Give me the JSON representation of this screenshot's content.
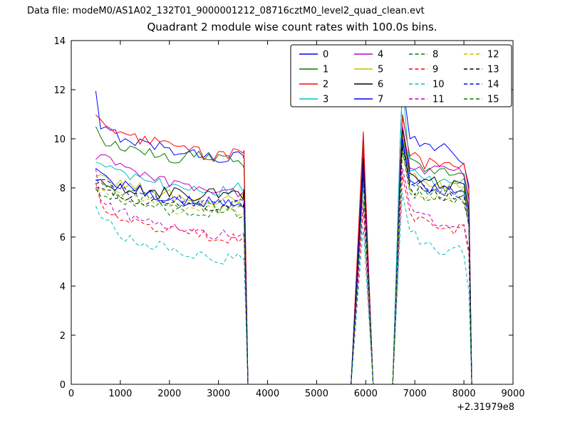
{
  "chart_data": {
    "type": "line",
    "datafile_label": "Data file: modeM0/AS1A02_132T01_9000001212_08716cztM0_level2_quad_clean.evt",
    "title": "Quadrant 2 module wise count rates with 100.0s bins.",
    "x_offset_label": "+2.31979e8",
    "xlim": [
      0,
      9000
    ],
    "ylim": [
      0,
      14
    ],
    "xticks": [
      0,
      1000,
      2000,
      3000,
      4000,
      5000,
      6000,
      7000,
      8000,
      9000
    ],
    "yticks": [
      0,
      2,
      4,
      6,
      8,
      10,
      12,
      14
    ],
    "grid": false,
    "legend_position": "upper-center-right",
    "legend_columns": 4,
    "anchor_x": [
      500,
      600,
      1000,
      1500,
      2000,
      2500,
      3000,
      3400,
      3520,
      3600,
      5650,
      5700,
      5950,
      6150,
      6550,
      6700,
      6750,
      6900,
      7200,
      7600,
      8000,
      8100,
      8160
    ],
    "series": [
      {
        "name": "0",
        "color": "#0000ff",
        "dashed": false,
        "anchors": [
          11.8,
          10.4,
          10.1,
          9.8,
          9.6,
          9.4,
          9.2,
          9.3,
          9.2,
          0,
          0,
          0,
          10.0,
          0,
          0,
          9.8,
          12.3,
          10.0,
          9.6,
          9.8,
          9.2,
          8.1,
          0
        ]
      },
      {
        "name": "1",
        "color": "#007f00",
        "dashed": false,
        "anchors": [
          10.3,
          10.0,
          9.6,
          9.4,
          9.2,
          9.3,
          9.2,
          9.1,
          9.0,
          0,
          0,
          0,
          9.8,
          0,
          0,
          8.8,
          11.0,
          9.2,
          8.9,
          8.7,
          8.6,
          7.6,
          0
        ]
      },
      {
        "name": "2",
        "color": "#ff0000",
        "dashed": false,
        "anchors": [
          11.0,
          10.7,
          10.2,
          9.9,
          9.7,
          9.5,
          9.3,
          9.4,
          9.4,
          0,
          0,
          0,
          10.3,
          0,
          0,
          8.7,
          10.9,
          9.3,
          9.0,
          8.9,
          9.0,
          7.9,
          0
        ]
      },
      {
        "name": "3",
        "color": "#00bfbf",
        "dashed": false,
        "anchors": [
          9.1,
          8.9,
          8.5,
          8.3,
          8.1,
          7.9,
          7.8,
          8.0,
          7.9,
          0,
          0,
          0,
          8.6,
          0,
          0,
          9.8,
          12.2,
          8.7,
          8.4,
          8.3,
          8.2,
          7.2,
          0
        ]
      },
      {
        "name": "4",
        "color": "#bf00bf",
        "dashed": false,
        "anchors": [
          9.4,
          9.2,
          8.8,
          8.5,
          8.2,
          8.0,
          7.9,
          7.8,
          7.8,
          0,
          0,
          0,
          9.5,
          0,
          0,
          8.4,
          10.5,
          8.8,
          8.7,
          8.8,
          8.6,
          7.5,
          0
        ]
      },
      {
        "name": "5",
        "color": "#bfbf00",
        "dashed": false,
        "anchors": [
          8.6,
          8.4,
          8.2,
          7.9,
          7.7,
          7.6,
          7.5,
          7.6,
          7.5,
          0,
          0,
          0,
          9.0,
          0,
          0,
          8.2,
          10.2,
          8.5,
          8.2,
          8.1,
          8.0,
          7.0,
          0
        ]
      },
      {
        "name": "6",
        "color": "#000000",
        "dashed": false,
        "anchors": [
          8.4,
          8.3,
          8.0,
          7.9,
          7.8,
          7.7,
          7.8,
          7.7,
          7.7,
          0,
          0,
          0,
          9.2,
          0,
          0,
          8.3,
          10.4,
          8.6,
          8.3,
          8.2,
          8.1,
          7.1,
          0
        ]
      },
      {
        "name": "7",
        "color": "#0000ff",
        "dashed": false,
        "anchors": [
          8.7,
          8.5,
          8.1,
          7.8,
          7.6,
          7.5,
          7.4,
          7.5,
          7.4,
          0,
          0,
          0,
          8.8,
          0,
          0,
          8.0,
          10.0,
          8.3,
          8.0,
          7.9,
          7.8,
          6.8,
          0
        ]
      },
      {
        "name": "8",
        "color": "#007f00",
        "dashed": true,
        "anchors": [
          8.3,
          8.1,
          7.8,
          7.6,
          7.4,
          7.3,
          7.2,
          7.3,
          7.2,
          0,
          0,
          0,
          8.5,
          0,
          0,
          7.8,
          9.8,
          8.1,
          7.9,
          7.8,
          7.7,
          6.7,
          0
        ]
      },
      {
        "name": "9",
        "color": "#ff0000",
        "dashed": true,
        "anchors": [
          8.2,
          7.4,
          6.9,
          6.5,
          6.3,
          6.1,
          6.0,
          5.9,
          5.9,
          0,
          0,
          0,
          7.2,
          0,
          0,
          6.8,
          8.5,
          7.0,
          6.6,
          6.4,
          6.3,
          5.3,
          0
        ]
      },
      {
        "name": "10",
        "color": "#00bfbf",
        "dashed": true,
        "anchors": [
          7.4,
          6.8,
          6.1,
          5.7,
          5.5,
          5.3,
          5.1,
          5.2,
          5.1,
          0,
          0,
          0,
          6.4,
          0,
          0,
          6.2,
          7.8,
          6.2,
          5.7,
          5.5,
          5.4,
          3.8,
          0
        ]
      },
      {
        "name": "11",
        "color": "#bf00bf",
        "dashed": true,
        "anchors": [
          8.8,
          7.5,
          7.0,
          6.7,
          6.4,
          6.2,
          6.1,
          6.2,
          6.1,
          0,
          0,
          0,
          7.5,
          0,
          0,
          7.0,
          8.8,
          7.3,
          6.8,
          6.6,
          6.5,
          5.5,
          0
        ]
      },
      {
        "name": "12",
        "color": "#bfbf00",
        "dashed": true,
        "anchors": [
          8.1,
          7.9,
          7.6,
          7.4,
          7.2,
          7.1,
          7.0,
          7.1,
          7.0,
          0,
          0,
          0,
          8.3,
          0,
          0,
          7.7,
          9.6,
          7.9,
          7.7,
          7.6,
          7.5,
          6.5,
          0
        ]
      },
      {
        "name": "13",
        "color": "#000000",
        "dashed": true,
        "anchors": [
          8.2,
          8.0,
          7.7,
          7.5,
          7.4,
          7.3,
          7.2,
          7.3,
          7.2,
          0,
          0,
          0,
          8.4,
          0,
          0,
          7.8,
          9.7,
          8.0,
          7.8,
          7.7,
          7.6,
          6.6,
          0
        ]
      },
      {
        "name": "14",
        "color": "#0000ff",
        "dashed": true,
        "anchors": [
          8.5,
          8.2,
          7.9,
          7.7,
          7.5,
          7.4,
          7.3,
          7.4,
          7.3,
          0,
          0,
          0,
          8.6,
          0,
          0,
          7.9,
          9.9,
          8.2,
          8.0,
          7.9,
          7.8,
          6.8,
          0
        ]
      },
      {
        "name": "15",
        "color": "#007f00",
        "dashed": true,
        "anchors": [
          8.0,
          7.8,
          7.5,
          7.3,
          7.1,
          7.0,
          6.9,
          7.0,
          6.9,
          0,
          0,
          0,
          8.2,
          0,
          0,
          7.6,
          9.5,
          7.8,
          7.6,
          7.5,
          7.4,
          6.4,
          0
        ]
      }
    ]
  }
}
